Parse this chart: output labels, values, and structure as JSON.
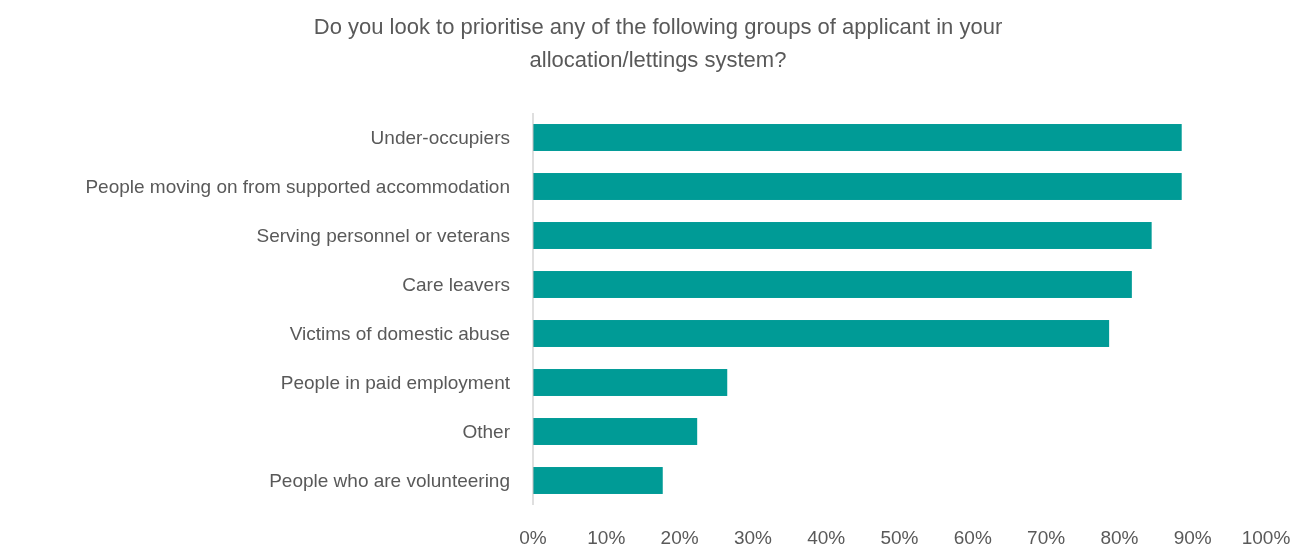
{
  "chart_data": {
    "type": "bar",
    "orientation": "horizontal",
    "title": "Do you look to prioritise any of the following groups of applicant in your allocation/lettings system?",
    "categories": [
      "Under-occupiers",
      "People moving on from supported accommodation",
      "Serving personnel or veterans",
      "Care leavers",
      "Victims of domestic abuse",
      "People in paid employment",
      "Other",
      "People who are volunteering"
    ],
    "values": [
      88.5,
      88.5,
      84.4,
      81.7,
      78.6,
      26.5,
      22.4,
      17.7
    ],
    "color": "#009b96",
    "xlim": [
      0,
      100
    ],
    "xticks": [
      {
        "value": 0,
        "label": "0%"
      },
      {
        "value": 10,
        "label": "10%"
      },
      {
        "value": 20,
        "label": "20%"
      },
      {
        "value": 30,
        "label": "30%"
      },
      {
        "value": 40,
        "label": "40%"
      },
      {
        "value": 50,
        "label": "50%"
      },
      {
        "value": 60,
        "label": "60%"
      },
      {
        "value": 70,
        "label": "70%"
      },
      {
        "value": 80,
        "label": "80%"
      },
      {
        "value": 90,
        "label": "90%"
      },
      {
        "value": 100,
        "label": "100%"
      }
    ],
    "grid": false
  }
}
